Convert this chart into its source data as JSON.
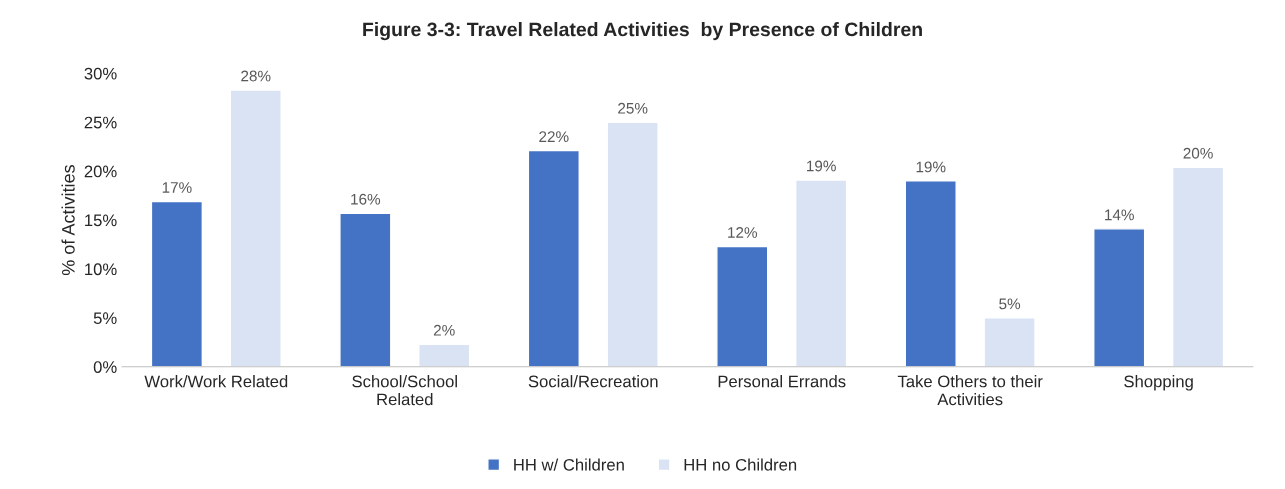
{
  "chart_data": {
    "type": "bar",
    "title": "Figure 3-3: Travel Related Activities  by Presence of Children",
    "ylabel": "% of Activities",
    "categories": [
      "Work/Work Related",
      "School/School\nRelated",
      "Social/Recreation",
      "Personal Errands",
      "Take Others to their\nActivities",
      "Shopping"
    ],
    "series": [
      {
        "name": "HH w/ Children",
        "color": "#4472c4",
        "values": [
          16.9,
          15.7,
          22.1,
          12.3,
          19.0,
          14.1
        ],
        "value_labels": [
          "17%",
          "16%",
          "22%",
          "12%",
          "19%",
          "14%"
        ]
      },
      {
        "name": "HH no Children",
        "color": "#dae3f3",
        "values": [
          28.3,
          2.3,
          25.0,
          19.1,
          5.0,
          20.4
        ],
        "value_labels": [
          "28%",
          "2%",
          "25%",
          "19%",
          "5%",
          "20%"
        ]
      }
    ],
    "ylim": [
      0,
      30
    ],
    "yticks": [
      {
        "value": 0,
        "label": "0%"
      },
      {
        "value": 5,
        "label": "5%"
      },
      {
        "value": 10,
        "label": "10%"
      },
      {
        "value": 15,
        "label": "15%"
      },
      {
        "value": 20,
        "label": "20%"
      },
      {
        "value": 25,
        "label": "25%"
      },
      {
        "value": 30,
        "label": "30%"
      }
    ],
    "grid": false,
    "legend": "bottom"
  }
}
